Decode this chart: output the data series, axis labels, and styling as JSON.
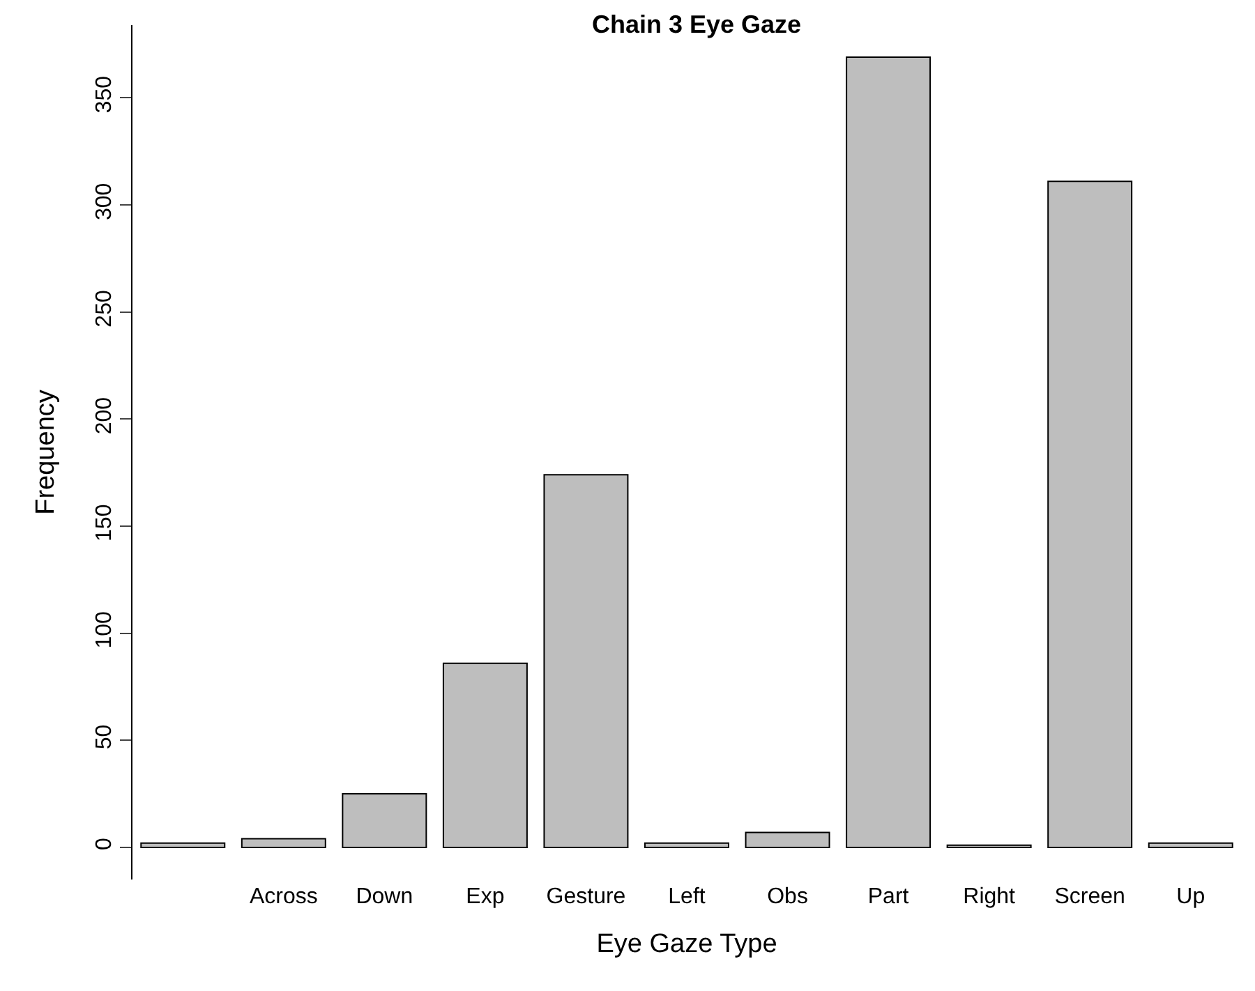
{
  "chart_data": {
    "type": "bar",
    "title": "Chain 3 Eye Gaze",
    "xlabel": "Eye Gaze Type",
    "ylabel": "Frequency",
    "categories": [
      null,
      "Across",
      "Down",
      "Exp",
      "Gesture",
      "Left",
      "Obs",
      "Part",
      "Right",
      "Screen",
      "Up"
    ],
    "values": [
      2,
      4,
      25,
      86,
      174,
      2,
      7,
      369,
      1,
      311,
      2
    ],
    "color": "#bebebe",
    "ylim": [
      -15,
      384
    ],
    "yticks": [
      0,
      50,
      100,
      150,
      200,
      250,
      300,
      350
    ]
  }
}
